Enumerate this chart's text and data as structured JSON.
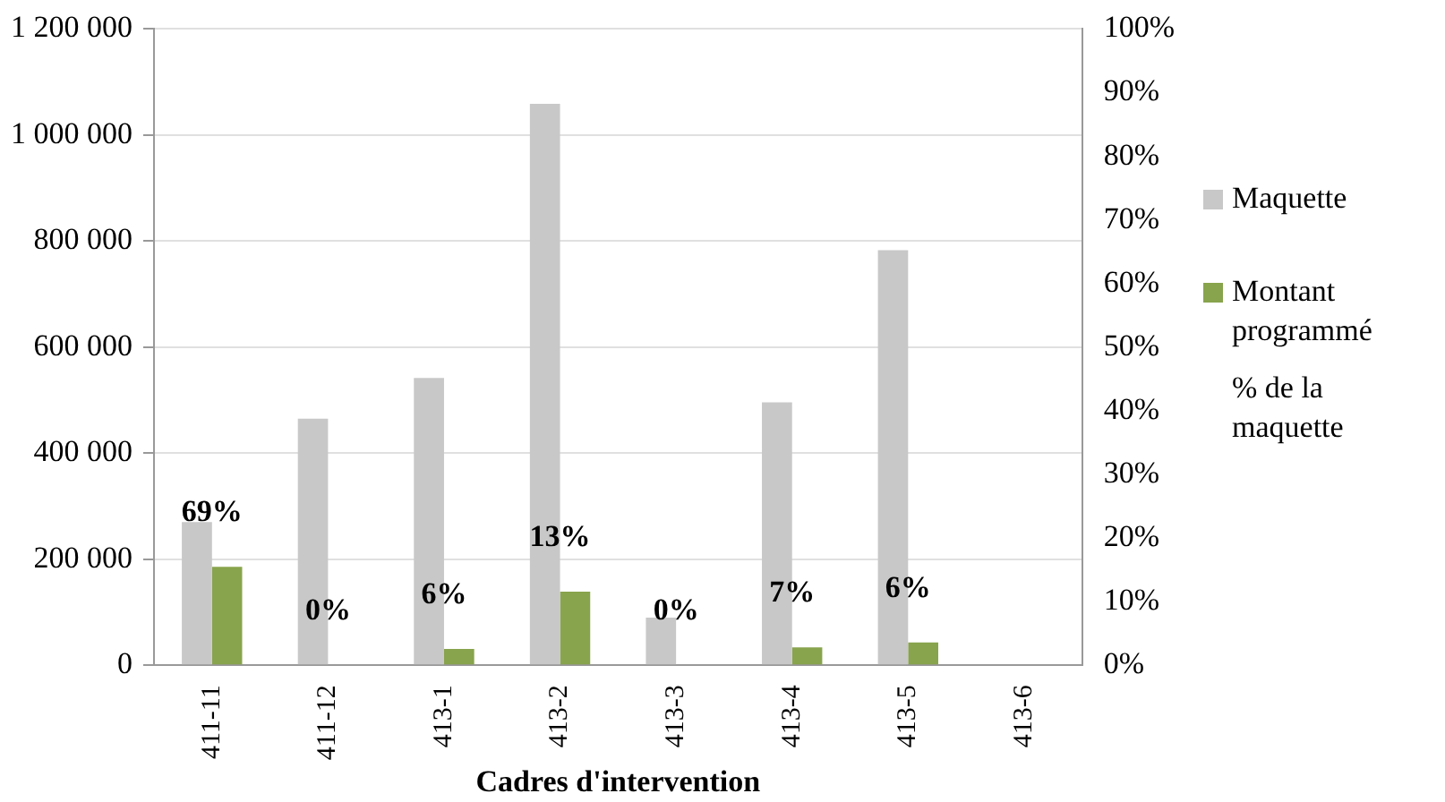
{
  "chart_data": {
    "type": "bar",
    "xlabel": "Cadres d'intervention",
    "categories": [
      "411-11",
      "411-12",
      "413-1",
      "413-2",
      "413-3",
      "413-4",
      "413-5",
      "413-6"
    ],
    "series": [
      {
        "name": "Maquette",
        "color": "#c8c8c8",
        "values": [
          270000,
          465000,
          542000,
          1059000,
          90000,
          496000,
          783000,
          0
        ]
      },
      {
        "name": "Montant programmé",
        "color": "#88a44c",
        "values": [
          186000,
          0,
          31000,
          139000,
          0,
          34000,
          43000,
          0
        ]
      }
    ],
    "annotations": [
      "% de la maquette",
      "69%",
      "0%",
      "6%",
      "13%",
      "0%",
      "7%",
      "6%"
    ],
    "ylim": [
      0,
      1200000
    ],
    "yticks": [
      0,
      {
        "value": 200000,
        "label": "200 000"
      },
      {
        "value": 400000,
        "label": "400 000"
      },
      {
        "value": 600000,
        "label": "600 000"
      },
      {
        "value": 800000,
        "label": "800 000"
      },
      {
        "value": 1000000,
        "label": "1 000 000"
      },
      {
        "value": 1200000,
        "label": "1 200 000"
      }
    ],
    "y2lim": [
      0,
      100
    ],
    "y2ticks": [
      {
        "value": 0,
        "label": "0%"
      },
      {
        "value": 10,
        "label": "10%"
      },
      {
        "value": 20,
        "label": "20%"
      },
      {
        "value": 30,
        "label": "30%"
      },
      {
        "value": 40,
        "label": "40%"
      },
      {
        "value": 50,
        "label": "50%"
      },
      {
        "value": 60,
        "label": "60%"
      },
      {
        "value": 70,
        "label": "70%"
      },
      {
        "value": 80,
        "label": "80%"
      },
      {
        "value": 90,
        "label": "90%"
      },
      {
        "value": 100,
        "label": "100%"
      }
    ],
    "grid": "y",
    "legend": "right"
  }
}
